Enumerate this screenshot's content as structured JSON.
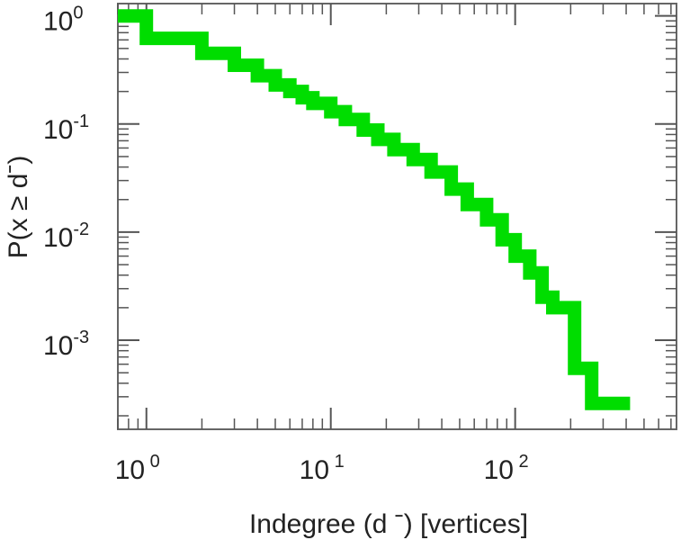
{
  "chart_data": {
    "type": "line",
    "step": true,
    "xscale": "log",
    "yscale": "log",
    "xlim": [
      0.7,
      750
    ],
    "ylim": [
      0.00015,
      1.3
    ],
    "xlabel": "Indegree (d  ˉ) [vertices]",
    "ylabel": "P(x ≥ dˉ)",
    "grid": false,
    "x_ticks": [
      {
        "value": 1,
        "base": "10",
        "exp": "0"
      },
      {
        "value": 10,
        "base": "10",
        "exp": "1"
      },
      {
        "value": 100,
        "base": "10",
        "exp": "2"
      }
    ],
    "y_ticks": [
      {
        "value": 1,
        "base": "10",
        "exp": "0"
      },
      {
        "value": 0.1,
        "base": "10",
        "exp": "-1"
      },
      {
        "value": 0.01,
        "base": "10",
        "exp": "-2"
      },
      {
        "value": 0.001,
        "base": "10",
        "exp": "-3"
      }
    ],
    "series": [
      {
        "color": "#00dd00",
        "points": [
          [
            0.7,
            1.0
          ],
          [
            1,
            0.62
          ],
          [
            2,
            0.45
          ],
          [
            3,
            0.35
          ],
          [
            4,
            0.28
          ],
          [
            5,
            0.23
          ],
          [
            6,
            0.2
          ],
          [
            7,
            0.175
          ],
          [
            8,
            0.155
          ],
          [
            10,
            0.13
          ],
          [
            12,
            0.11
          ],
          [
            15,
            0.088
          ],
          [
            18,
            0.072
          ],
          [
            22,
            0.058
          ],
          [
            28,
            0.047
          ],
          [
            35,
            0.036
          ],
          [
            45,
            0.025
          ],
          [
            55,
            0.018
          ],
          [
            70,
            0.013
          ],
          [
            85,
            0.0085
          ],
          [
            100,
            0.006
          ],
          [
            120,
            0.0042
          ],
          [
            140,
            0.0025
          ],
          [
            160,
            0.002
          ],
          [
            200,
            0.002
          ],
          [
            210,
            0.00055
          ],
          [
            260,
            0.00026
          ],
          [
            420,
            0.00026
          ]
        ]
      }
    ],
    "line_color": "#00dd00"
  }
}
